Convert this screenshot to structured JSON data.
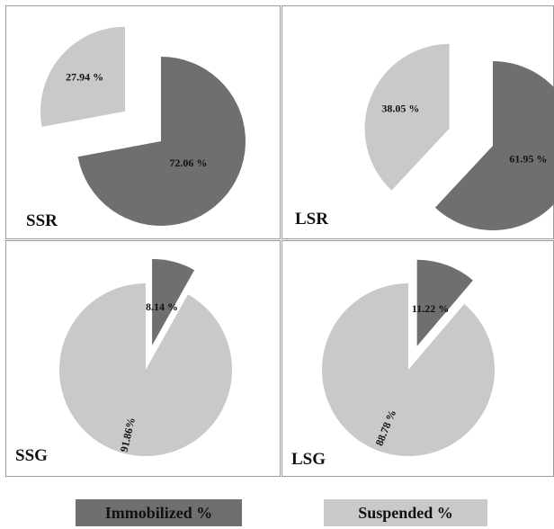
{
  "chart_data": [
    {
      "type": "pie",
      "label": "SSR",
      "slices": [
        {
          "name": "Immobilized %",
          "value": 72.06,
          "label": "72.06 %"
        },
        {
          "name": "Suspended %",
          "value": 27.94,
          "label": "27.94 %"
        }
      ],
      "exploded": "Suspended %"
    },
    {
      "type": "pie",
      "label": "LSR",
      "slices": [
        {
          "name": "Immobilized %",
          "value": 61.95,
          "label": "61.95 %"
        },
        {
          "name": "Suspended %",
          "value": 38.05,
          "label": "38.05 %"
        }
      ],
      "exploded": "Suspended %"
    },
    {
      "type": "pie",
      "label": "SSG",
      "slices": [
        {
          "name": "Immobilized %",
          "value": 8.14,
          "label": "8.14 %"
        },
        {
          "name": "Suspended %",
          "value": 91.86,
          "label": "91.86%"
        }
      ],
      "exploded": "Immobilized %"
    },
    {
      "type": "pie",
      "label": "LSG",
      "slices": [
        {
          "name": "Immobilized %",
          "value": 11.22,
          "label": "11.22 %"
        },
        {
          "name": "Suspended %",
          "value": 88.78,
          "label": "88.78 %"
        }
      ],
      "exploded": "Immobilized %"
    }
  ],
  "legend": [
    {
      "label": "Immobilized %",
      "color": "#6f6f6f"
    },
    {
      "label": "Suspended %",
      "color": "#c9c9c9"
    }
  ],
  "colors": {
    "immobilized": "#6f6f6f",
    "suspended": "#c9c9c9"
  }
}
